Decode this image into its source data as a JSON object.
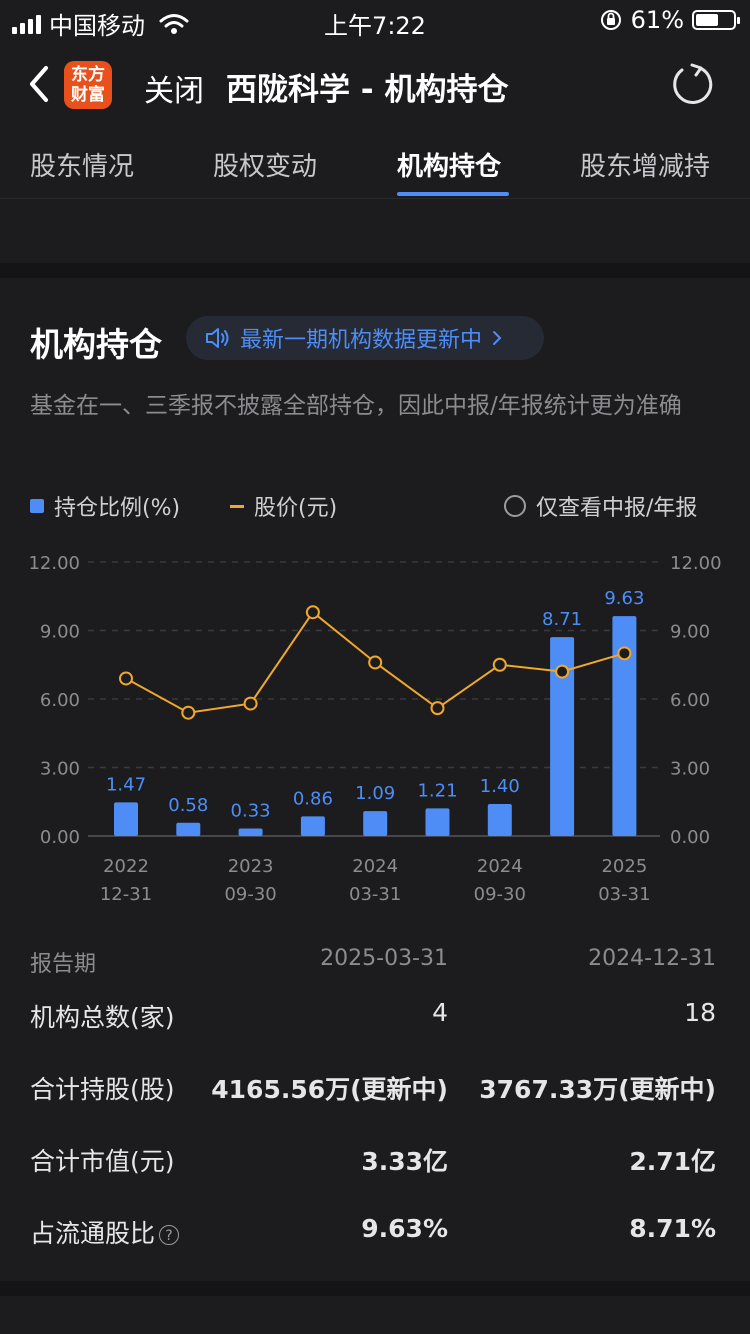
{
  "status_bar": {
    "carrier": "中国移动",
    "time": "上午7:22",
    "battery": "61%",
    "battery_level": 0.61
  },
  "nav": {
    "logo_line1": "东方",
    "logo_line2": "财富",
    "close_label": "关闭",
    "title": "西陇科学 - 机构持仓"
  },
  "tabs": [
    {
      "label": "股东情况"
    },
    {
      "label": "股权变动"
    },
    {
      "label": "机构持仓"
    },
    {
      "label": "股东增减持"
    }
  ],
  "card": {
    "title": "机构持仓",
    "notice": "最新一期机构数据更新中",
    "description": "基金在一、三季报不披露全部持仓，因此中报/年报统计更为准确",
    "legend_bar": "持仓比例(%)",
    "legend_line": "股价(元)",
    "filter_label": "仅查看中报/年报"
  },
  "chart_data": {
    "type": "bar",
    "y_ticks": [
      "12.00",
      "9.00",
      "6.00",
      "3.00",
      "0.00"
    ],
    "ylim": [
      0,
      12
    ],
    "x_tick_labels": [
      {
        "year": "2022",
        "date": "12-31",
        "index": 0
      },
      {
        "year": "2023",
        "date": "09-30",
        "index": 2
      },
      {
        "year": "2024",
        "date": "03-31",
        "index": 4
      },
      {
        "year": "2024",
        "date": "09-30",
        "index": 6
      },
      {
        "year": "2025",
        "date": "03-31",
        "index": 8
      }
    ],
    "series": [
      {
        "name": "持仓比例(%)",
        "type": "bar",
        "color": "#4d8df5",
        "values": [
          1.47,
          0.58,
          0.33,
          0.86,
          1.09,
          1.21,
          1.4,
          8.71,
          9.63
        ],
        "labels": [
          "1.47",
          "0.58",
          "0.33",
          "0.86",
          "1.09",
          "1.21",
          "1.40",
          "8.71",
          "9.63"
        ]
      },
      {
        "name": "股价(元)",
        "type": "line",
        "color": "#f0a82a",
        "values": [
          6.9,
          5.4,
          5.8,
          9.8,
          7.6,
          5.6,
          7.5,
          7.2,
          8.0
        ]
      }
    ],
    "grid": true
  },
  "table": {
    "header": {
      "label": "报告期",
      "col1": "2025-03-31",
      "col2": "2024-12-31"
    },
    "rows": [
      {
        "label": "机构总数(家)",
        "col1": "4",
        "col2": "18"
      },
      {
        "label": "合计持股(股)",
        "col1": "4165.56万(更新中)",
        "col2": "3767.33万(更新中)"
      },
      {
        "label": "合计市值(元)",
        "col1": "3.33亿",
        "col2": "2.71亿"
      },
      {
        "label": "占流通股比",
        "col1": "9.63%",
        "col2": "8.71%",
        "info_icon": "?"
      }
    ]
  }
}
